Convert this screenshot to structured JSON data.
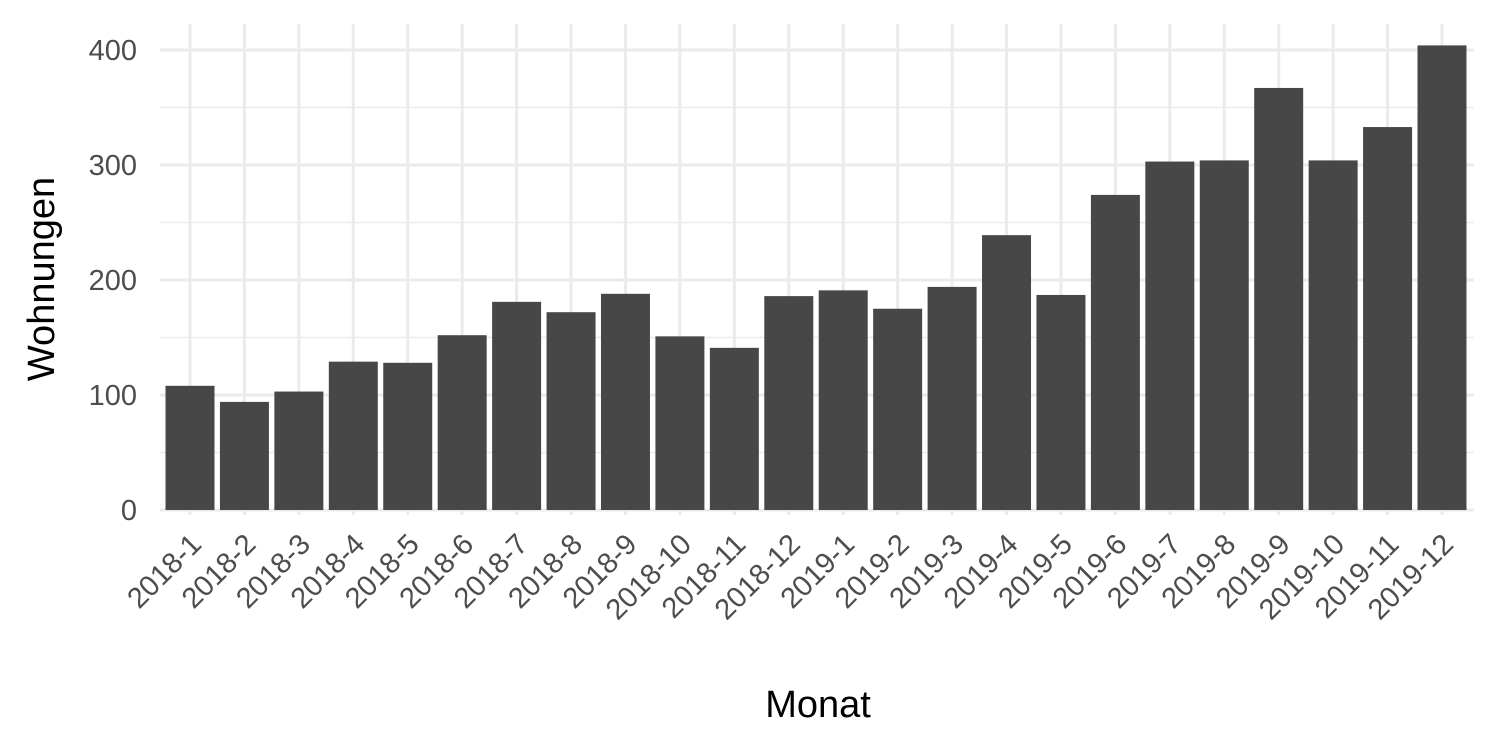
{
  "chart_data": {
    "type": "bar",
    "title": "",
    "xlabel": "Monat",
    "ylabel": "Wohnungen",
    "categories": [
      "2018-1",
      "2018-2",
      "2018-3",
      "2018-4",
      "2018-5",
      "2018-6",
      "2018-7",
      "2018-8",
      "2018-9",
      "2018-10",
      "2018-11",
      "2018-12",
      "2019-1",
      "2019-2",
      "2019-3",
      "2019-4",
      "2019-5",
      "2019-6",
      "2019-7",
      "2019-8",
      "2019-9",
      "2019-10",
      "2019-11",
      "2019-12"
    ],
    "values": [
      108,
      94,
      103,
      129,
      128,
      152,
      181,
      172,
      188,
      151,
      141,
      186,
      191,
      175,
      194,
      239,
      187,
      274,
      303,
      304,
      367,
      304,
      333,
      404
    ],
    "ylim": [
      0,
      400
    ],
    "yticks": [
      0,
      100,
      200,
      300,
      400
    ],
    "grid": true,
    "legend": "none",
    "bar_color": "#474747",
    "grid_color": "#ebebeb"
  }
}
